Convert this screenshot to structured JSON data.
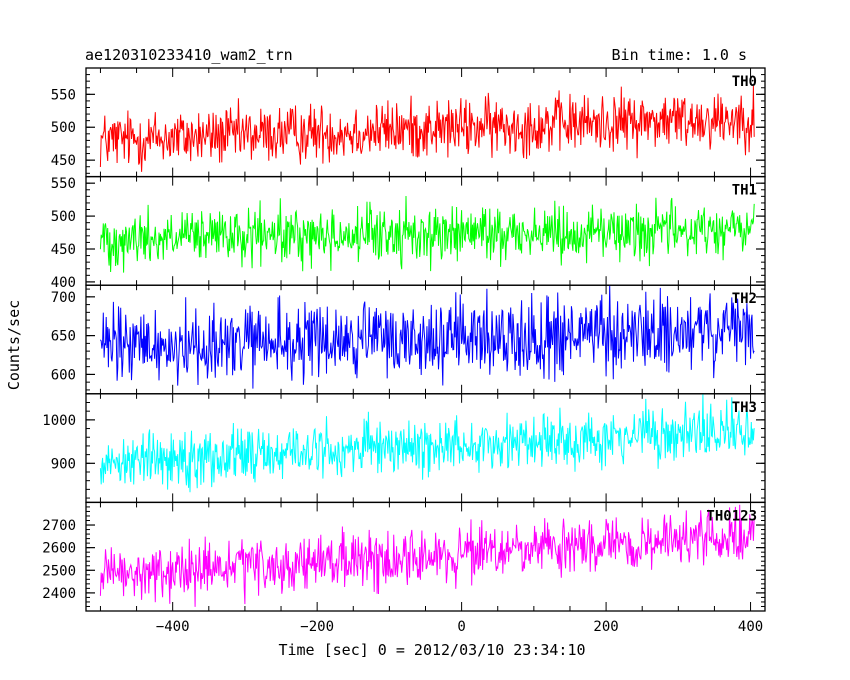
{
  "chart_data": {
    "type": "line",
    "title": "ae120310233410_wam2_trn",
    "subtitle": "Bin time: 1.0 s",
    "xlabel": "Time [sec] 0 = 2012/03/10 23:34:10",
    "ylabel": "Counts/sec",
    "xlim": [
      -520,
      420
    ],
    "x_range": [
      -500,
      405
    ],
    "x_ticks": [
      -400,
      -200,
      0,
      200,
      400
    ],
    "x_tick_labels": [
      "−400",
      "−200",
      "0",
      "200",
      "400"
    ],
    "grid": false,
    "panels": [
      {
        "name": "TH0",
        "color": "#ff0000",
        "ylim": [
          425,
          590
        ],
        "y_ticks": [
          450,
          500,
          550
        ],
        "y_tick_labels": [
          "450",
          "500",
          "550"
        ],
        "trend_start": 480,
        "trend_end": 515,
        "noise_amplitude": 22
      },
      {
        "name": "TH1",
        "color": "#00ff00",
        "ylim": [
          395,
          560
        ],
        "y_ticks": [
          400,
          450,
          500,
          550
        ],
        "y_tick_labels": [
          "400",
          "450",
          "500",
          "550"
        ],
        "trend_start": 465,
        "trend_end": 480,
        "noise_amplitude": 21
      },
      {
        "name": "TH2",
        "color": "#0000ff",
        "ylim": [
          575,
          715
        ],
        "y_ticks": [
          600,
          650,
          700
        ],
        "y_tick_labels": [
          "600",
          "650",
          "700"
        ],
        "trend_start": 635,
        "trend_end": 655,
        "noise_amplitude": 25
      },
      {
        "name": "TH3",
        "color": "#00ffff",
        "ylim": [
          810,
          1060
        ],
        "y_ticks": [
          900,
          1000
        ],
        "y_tick_labels": [
          "900",
          "1000"
        ],
        "trend_start": 905,
        "trend_end": 975,
        "noise_amplitude": 32
      },
      {
        "name": "TH0123",
        "color": "#ff00ff",
        "ylim": [
          2320,
          2800
        ],
        "y_ticks": [
          2400,
          2500,
          2600,
          2700
        ],
        "y_tick_labels": [
          "2400",
          "2500",
          "2600",
          "2700"
        ],
        "trend_start": 2470,
        "trend_end": 2650,
        "noise_amplitude": 60
      }
    ]
  }
}
